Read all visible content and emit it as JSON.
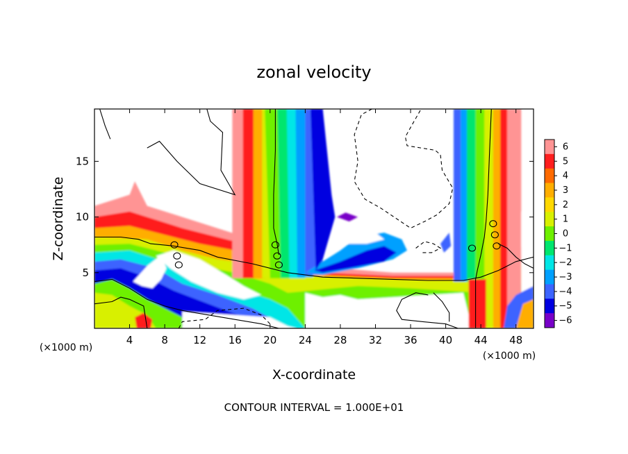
{
  "chart_data": {
    "type": "heatmap",
    "title": "zonal velocity",
    "xlabel": "X-coordinate",
    "ylabel": "Z-coordinate",
    "x_unit_left": "(×1000 m)",
    "x_unit_right": "(×1000 m)",
    "footer": "CONTOUR INTERVAL = 1.000E+01",
    "xlim": [
      0,
      50
    ],
    "ylim": [
      0,
      19.7
    ],
    "xticks": [
      4,
      8,
      12,
      16,
      20,
      24,
      28,
      32,
      36,
      40,
      44,
      48
    ],
    "xtick_labels": [
      "4",
      "8",
      "12",
      "16",
      "20",
      "24",
      "28",
      "32",
      "36",
      "40",
      "44",
      "48"
    ],
    "yticks": [
      5,
      10,
      15
    ],
    "ytick_labels": [
      "5",
      "10",
      "15"
    ],
    "colorbar": {
      "levels": [
        6,
        5,
        4,
        3,
        2,
        1,
        0,
        -1,
        -2,
        -3,
        -4,
        -5,
        -6
      ],
      "labels": [
        "6",
        "5",
        "4",
        "3",
        "2",
        "1",
        "0",
        "−1",
        "−2",
        "−3",
        "−4",
        "−5",
        "−6"
      ],
      "colors": [
        "#ff9494",
        "#ff1e1e",
        "#ff6a00",
        "#ffae00",
        "#ffd800",
        "#d8f000",
        "#6ef000",
        "#00e66e",
        "#00e6e6",
        "#00a0ff",
        "#3c64ff",
        "#0000e0",
        "#7800c8"
      ]
    },
    "features": [
      {
        "kind": "sheet",
        "desc": "shear layer along slope",
        "points": [
          [
            0,
            8.2
          ],
          [
            6,
            8.0
          ],
          [
            10,
            7.0
          ],
          [
            14,
            6.2
          ],
          [
            18,
            5.8
          ],
          [
            22,
            5.0
          ],
          [
            26,
            4.6
          ],
          [
            30,
            4.5
          ],
          [
            34,
            4.4
          ],
          [
            38,
            4.3
          ],
          [
            42,
            4.3
          ],
          [
            46,
            5.2
          ],
          [
            50,
            6.2
          ]
        ]
      },
      {
        "kind": "column",
        "desc": "positive vertical band",
        "x": 19.5
      },
      {
        "kind": "column",
        "desc": "negative vertical band",
        "x": 24.5
      },
      {
        "kind": "column",
        "desc": "right column",
        "x": 44.5
      }
    ]
  }
}
